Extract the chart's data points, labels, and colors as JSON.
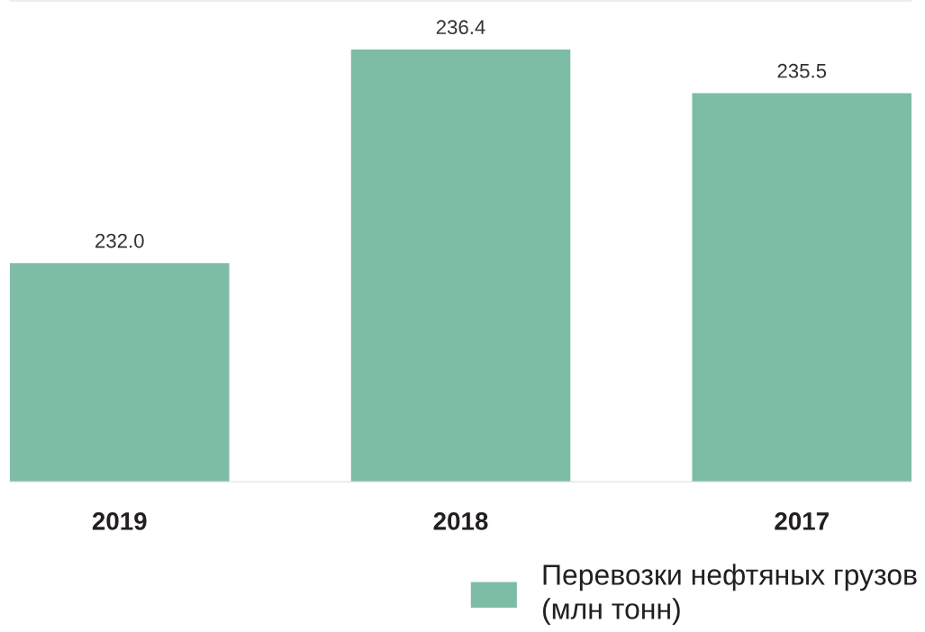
{
  "chart_data": {
    "type": "bar",
    "categories": [
      "2019",
      "2018",
      "2017"
    ],
    "series": [
      {
        "name": "Перевозки нефтяных грузов (млн тонн)",
        "color": "#7dbda5",
        "values": [
          232.0,
          236.4,
          235.5
        ],
        "value_labels": [
          "232.0",
          "236.4",
          "235.5"
        ]
      }
    ],
    "ylim": [
      227.5,
      237.4
    ],
    "tick_labels": "x",
    "legend": "bottom right",
    "grid": false
  }
}
